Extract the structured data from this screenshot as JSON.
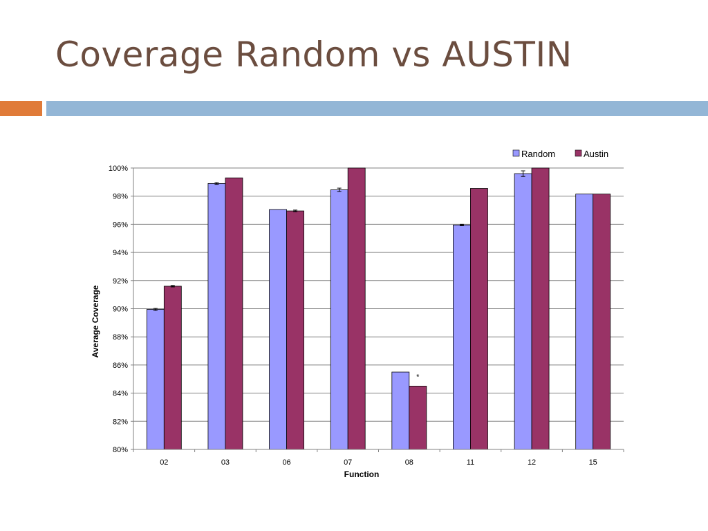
{
  "slide": {
    "title": "Coverage Random vs AUSTIN",
    "colors": {
      "title": "#6b4d3f",
      "accent_orange": "#e07b39",
      "accent_blue": "#93b6d6"
    }
  },
  "chart_data": {
    "type": "bar",
    "xlabel": "Function",
    "ylabel": "Average Coverage",
    "ylim": [
      80,
      100
    ],
    "ytick_step": 2,
    "ytick_suffix": "%",
    "categories": [
      "02",
      "03",
      "06",
      "07",
      "08",
      "11",
      "12",
      "15"
    ],
    "series": [
      {
        "name": "Random",
        "color": "#9999ff",
        "values": [
          89.95,
          98.9,
          97.05,
          98.45,
          85.5,
          95.95,
          99.6,
          98.15
        ],
        "error": [
          0.07,
          0.06,
          0,
          0.12,
          0,
          0.05,
          0.2,
          0
        ]
      },
      {
        "name": "Austin",
        "color": "#993366",
        "values": [
          91.6,
          99.3,
          96.95,
          100,
          84.5,
          98.55,
          100,
          98.15
        ],
        "error": [
          0.05,
          0,
          0.06,
          0,
          0,
          0,
          0,
          0
        ]
      }
    ],
    "annotations": [
      {
        "category": "08",
        "series": "Austin",
        "text": "*"
      }
    ],
    "legend": "top-right",
    "grid": true
  }
}
